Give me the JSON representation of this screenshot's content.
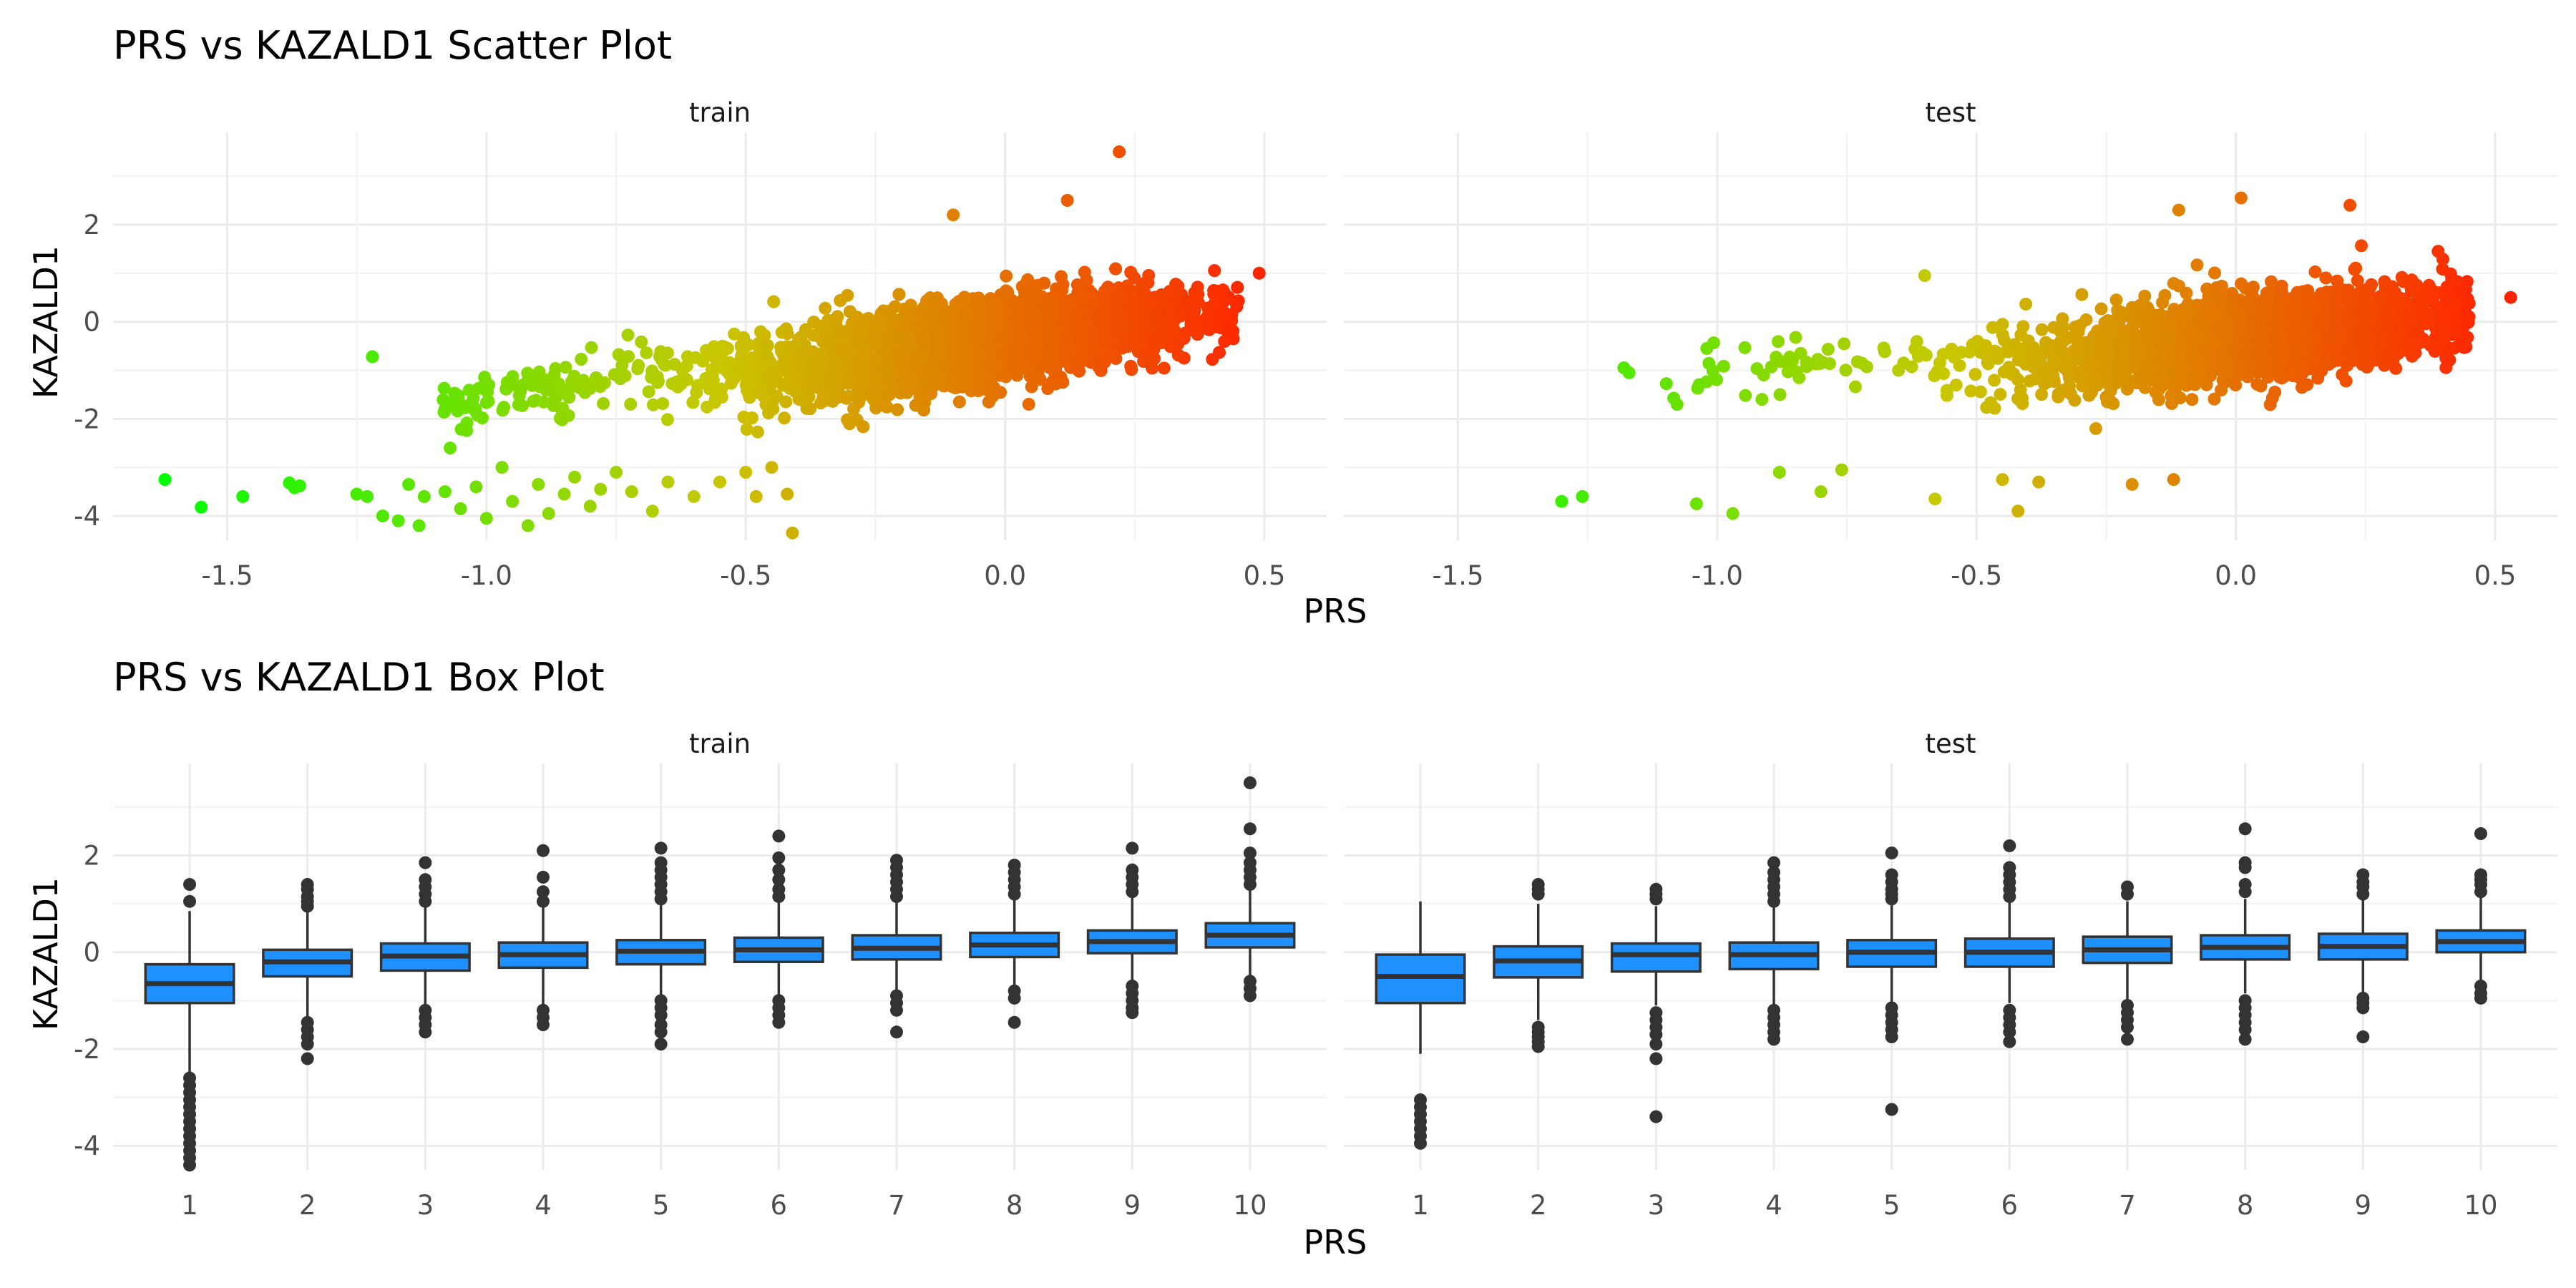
{
  "chart_data": [
    {
      "type": "scatter",
      "title": "PRS vs KAZALD1 Scatter Plot",
      "xlabel": "PRS",
      "ylabel": "KAZALD1",
      "facets": [
        "train",
        "test"
      ],
      "xlim": [
        -1.72,
        0.62
      ],
      "ylim": [
        -4.5,
        3.9
      ],
      "x_ticks": [
        -1.5,
        -1.0,
        -0.5,
        0.0,
        0.5
      ],
      "x_tick_labels": [
        "-1.5",
        "-1.0",
        "-0.5",
        "0.0",
        "0.5"
      ],
      "y_ticks": [
        2,
        0,
        -2,
        -4
      ],
      "y_tick_labels": [
        "2",
        "0",
        "-2",
        "-4"
      ],
      "grid": true,
      "color_gradient": {
        "low": "#00ff00",
        "mid": "#c8c800",
        "high": "#ff2200",
        "by": "PRS"
      },
      "trend": {
        "train": {
          "slope": 1.55,
          "intercept": -0.35,
          "sd": 0.48
        },
        "test": {
          "slope": 1.2,
          "intercept": -0.35,
          "sd": 0.5
        }
      },
      "series": [
        {
          "facet": "train",
          "points": [
            {
              "x": -1.62,
              "y": -3.25
            },
            {
              "x": -1.55,
              "y": -3.82
            },
            {
              "x": -1.47,
              "y": -3.6
            },
            {
              "x": -1.38,
              "y": -3.32
            },
            {
              "x": -1.37,
              "y": -3.42
            },
            {
              "x": -1.36,
              "y": -3.38
            },
            {
              "x": -1.25,
              "y": -3.55
            },
            {
              "x": -1.23,
              "y": -3.6
            },
            {
              "x": -1.2,
              "y": -4.0
            },
            {
              "x": -1.17,
              "y": -4.1
            },
            {
              "x": -1.15,
              "y": -3.35
            },
            {
              "x": -1.13,
              "y": -4.2
            },
            {
              "x": -1.12,
              "y": -3.6
            },
            {
              "x": -1.08,
              "y": -3.5
            },
            {
              "x": -1.05,
              "y": -3.85
            },
            {
              "x": -1.02,
              "y": -3.4
            },
            {
              "x": -1.0,
              "y": -4.05
            },
            {
              "x": -0.97,
              "y": -3.0
            },
            {
              "x": -0.95,
              "y": -3.7
            },
            {
              "x": -0.92,
              "y": -4.2
            },
            {
              "x": -0.9,
              "y": -3.35
            },
            {
              "x": -0.88,
              "y": -3.95
            },
            {
              "x": -0.85,
              "y": -3.55
            },
            {
              "x": -0.83,
              "y": -3.2
            },
            {
              "x": -0.8,
              "y": -3.8
            },
            {
              "x": -0.78,
              "y": -3.45
            },
            {
              "x": -0.75,
              "y": -3.1
            },
            {
              "x": -0.72,
              "y": -3.5
            },
            {
              "x": -0.68,
              "y": -3.9
            },
            {
              "x": -0.65,
              "y": -3.3
            },
            {
              "x": -0.6,
              "y": -3.6
            },
            {
              "x": -0.55,
              "y": -3.3
            },
            {
              "x": -0.5,
              "y": -3.1
            },
            {
              "x": -0.48,
              "y": -3.6
            },
            {
              "x": -0.45,
              "y": -3.0
            },
            {
              "x": -0.42,
              "y": -3.55
            },
            {
              "x": -0.41,
              "y": -4.35
            },
            {
              "x": -1.22,
              "y": -0.72
            },
            {
              "x": -1.07,
              "y": -2.6
            },
            {
              "x": -1.08,
              "y": -1.8
            },
            {
              "x": 0.22,
              "y": 3.5
            },
            {
              "x": 0.12,
              "y": 2.5
            },
            {
              "x": 0.49,
              "y": 1.0
            },
            {
              "x": -0.3,
              "y": -2.1
            },
            {
              "x": -0.1,
              "y": 2.2
            }
          ]
        },
        {
          "facet": "test",
          "points": [
            {
              "x": 0.53,
              "y": 0.5
            },
            {
              "x": 0.01,
              "y": 2.55
            },
            {
              "x": 0.22,
              "y": 2.4
            },
            {
              "x": -0.11,
              "y": 2.3
            },
            {
              "x": -1.3,
              "y": -3.7
            },
            {
              "x": -1.26,
              "y": -3.6
            },
            {
              "x": -1.18,
              "y": -0.95
            },
            {
              "x": -1.17,
              "y": -1.05
            },
            {
              "x": -1.04,
              "y": -3.75
            },
            {
              "x": -0.97,
              "y": -3.95
            },
            {
              "x": -1.02,
              "y": -0.55
            },
            {
              "x": -0.88,
              "y": -3.1
            },
            {
              "x": -0.8,
              "y": -3.5
            },
            {
              "x": -0.76,
              "y": -3.05
            },
            {
              "x": -0.58,
              "y": -3.65
            },
            {
              "x": -0.45,
              "y": -3.25
            },
            {
              "x": -0.38,
              "y": -3.3
            },
            {
              "x": -0.42,
              "y": -3.9
            },
            {
              "x": -0.2,
              "y": -3.35
            },
            {
              "x": -0.12,
              "y": -3.25
            },
            {
              "x": -0.27,
              "y": -2.2
            },
            {
              "x": -0.6,
              "y": 0.95
            },
            {
              "x": 0.39,
              "y": 1.45
            }
          ]
        }
      ]
    },
    {
      "type": "box",
      "title": "PRS vs KAZALD1 Box Plot",
      "xlabel": "PRS",
      "ylabel": "KAZALD1",
      "facets": [
        "train",
        "test"
      ],
      "categories": [
        "1",
        "2",
        "3",
        "4",
        "5",
        "6",
        "7",
        "8",
        "9",
        "10"
      ],
      "ylim": [
        -4.5,
        3.9
      ],
      "y_ticks": [
        2,
        0,
        -2,
        -4
      ],
      "y_tick_labels": [
        "2",
        "0",
        "-2",
        "-4"
      ],
      "fill": "#1e90ff",
      "grid": true,
      "series": [
        {
          "facet": "train",
          "boxes": [
            {
              "q1": -1.05,
              "median": -0.65,
              "q3": -0.25,
              "whisker_low": -2.5,
              "whisker_high": 0.85,
              "outliers": [
                1.05,
                1.4,
                -2.6,
                -2.75,
                -2.9,
                -3.05,
                -3.2,
                -3.35,
                -3.5,
                -3.65,
                -3.8,
                -3.95,
                -4.1,
                -4.25,
                -4.4
              ]
            },
            {
              "q1": -0.5,
              "median": -0.2,
              "q3": 0.05,
              "whisker_low": -1.35,
              "whisker_high": 0.85,
              "outliers": [
                0.95,
                1.05,
                1.15,
                1.3,
                1.4,
                -1.45,
                -1.6,
                -1.75,
                -1.9,
                -2.2
              ]
            },
            {
              "q1": -0.38,
              "median": -0.08,
              "q3": 0.18,
              "whisker_low": -1.15,
              "whisker_high": 1.0,
              "outliers": [
                1.05,
                1.2,
                1.35,
                1.5,
                1.85,
                -1.2,
                -1.35,
                -1.5,
                -1.65
              ]
            },
            {
              "q1": -0.32,
              "median": -0.05,
              "q3": 0.2,
              "whisker_low": -1.1,
              "whisker_high": 0.95,
              "outliers": [
                1.05,
                1.25,
                1.55,
                2.1,
                -1.2,
                -1.35,
                -1.5
              ]
            },
            {
              "q1": -0.25,
              "median": 0.02,
              "q3": 0.25,
              "whisker_low": -1.0,
              "whisker_high": 1.0,
              "outliers": [
                1.1,
                1.25,
                1.4,
                1.55,
                1.7,
                1.85,
                2.15,
                -1.0,
                -1.15,
                -1.3,
                -1.5,
                -1.65,
                -1.9
              ]
            },
            {
              "q1": -0.2,
              "median": 0.05,
              "q3": 0.3,
              "whisker_low": -0.95,
              "whisker_high": 1.05,
              "outliers": [
                1.15,
                1.3,
                1.5,
                1.7,
                1.95,
                2.4,
                -1.0,
                -1.15,
                -1.3,
                -1.45
              ]
            },
            {
              "q1": -0.15,
              "median": 0.08,
              "q3": 0.35,
              "whisker_low": -0.9,
              "whisker_high": 1.05,
              "outliers": [
                1.15,
                1.3,
                1.45,
                1.6,
                1.75,
                1.9,
                -0.9,
                -1.05,
                -1.2,
                -1.65
              ]
            },
            {
              "q1": -0.1,
              "median": 0.15,
              "q3": 0.4,
              "whisker_low": -0.7,
              "whisker_high": 1.1,
              "outliers": [
                1.2,
                1.35,
                1.5,
                1.65,
                1.8,
                -0.8,
                -0.95,
                -1.45
              ]
            },
            {
              "q1": -0.02,
              "median": 0.22,
              "q3": 0.45,
              "whisker_low": -0.65,
              "whisker_high": 1.15,
              "outliers": [
                1.25,
                1.4,
                1.55,
                1.7,
                2.15,
                -0.7,
                -0.85,
                -1.0,
                -1.15,
                -1.25
              ]
            },
            {
              "q1": 0.1,
              "median": 0.35,
              "q3": 0.6,
              "whisker_low": -0.55,
              "whisker_high": 1.3,
              "outliers": [
                1.4,
                1.55,
                1.7,
                1.85,
                2.05,
                2.55,
                3.5,
                -0.6,
                -0.75,
                -0.9
              ]
            }
          ]
        },
        {
          "facet": "test",
          "boxes": [
            {
              "q1": -1.05,
              "median": -0.5,
              "q3": -0.05,
              "whisker_low": -2.1,
              "whisker_high": 1.05,
              "outliers": [
                -3.05,
                -3.2,
                -3.35,
                -3.5,
                -3.65,
                -3.8,
                -3.95
              ]
            },
            {
              "q1": -0.52,
              "median": -0.18,
              "q3": 0.12,
              "whisker_low": -1.4,
              "whisker_high": 1.0,
              "outliers": [
                1.2,
                1.3,
                1.4,
                -1.55,
                -1.65,
                -1.75,
                -1.85,
                -1.95
              ]
            },
            {
              "q1": -0.4,
              "median": -0.05,
              "q3": 0.18,
              "whisker_low": -1.1,
              "whisker_high": 0.95,
              "outliers": [
                1.1,
                1.2,
                1.3,
                -1.25,
                -1.4,
                -1.55,
                -1.7,
                -1.9,
                -2.2,
                -3.4
              ]
            },
            {
              "q1": -0.35,
              "median": -0.05,
              "q3": 0.2,
              "whisker_low": -1.1,
              "whisker_high": 0.95,
              "outliers": [
                1.05,
                1.2,
                1.35,
                1.5,
                1.65,
                1.85,
                -1.2,
                -1.35,
                -1.5,
                -1.65,
                -1.8
              ]
            },
            {
              "q1": -0.3,
              "median": 0.0,
              "q3": 0.25,
              "whisker_low": -1.05,
              "whisker_high": 1.0,
              "outliers": [
                1.1,
                1.2,
                1.3,
                1.45,
                1.6,
                2.05,
                -1.15,
                -1.3,
                -1.45,
                -1.6,
                -1.75,
                -3.25
              ]
            },
            {
              "q1": -0.3,
              "median": 0.0,
              "q3": 0.28,
              "whisker_low": -1.05,
              "whisker_high": 1.05,
              "outliers": [
                1.15,
                1.3,
                1.45,
                1.6,
                1.75,
                2.2,
                -1.2,
                -1.35,
                -1.5,
                -1.65,
                -1.85
              ]
            },
            {
              "q1": -0.22,
              "median": 0.05,
              "q3": 0.32,
              "whisker_low": -1.0,
              "whisker_high": 1.05,
              "outliers": [
                1.2,
                1.35,
                -1.1,
                -1.25,
                -1.4,
                -1.55,
                -1.8
              ]
            },
            {
              "q1": -0.15,
              "median": 0.1,
              "q3": 0.35,
              "whisker_low": -0.85,
              "whisker_high": 1.1,
              "outliers": [
                1.25,
                1.4,
                1.75,
                1.85,
                2.55,
                -1.0,
                -1.15,
                -1.3,
                -1.45,
                -1.6,
                -1.8
              ]
            },
            {
              "q1": -0.15,
              "median": 0.12,
              "q3": 0.38,
              "whisker_low": -0.85,
              "whisker_high": 1.1,
              "outliers": [
                1.2,
                1.35,
                1.45,
                1.6,
                -0.95,
                -1.05,
                -1.15,
                -1.75
              ]
            },
            {
              "q1": 0.0,
              "median": 0.22,
              "q3": 0.45,
              "whisker_low": -0.65,
              "whisker_high": 1.15,
              "outliers": [
                1.25,
                1.4,
                1.5,
                1.6,
                2.45,
                -0.7,
                -0.85,
                -0.95
              ]
            }
          ]
        }
      ]
    }
  ]
}
